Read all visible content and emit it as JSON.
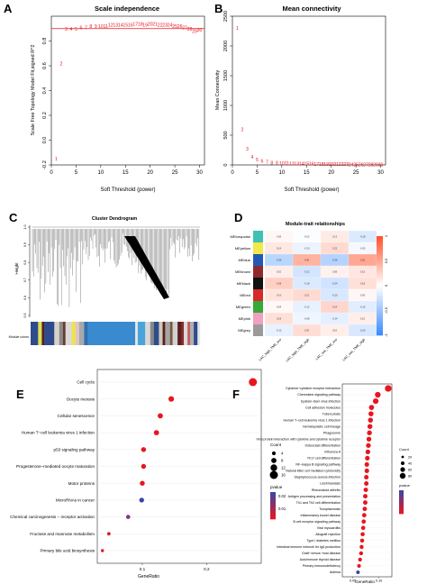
{
  "panels": {
    "A": {
      "letter": "A",
      "chart_data": {
        "type": "scatter",
        "title": "Scale independence",
        "xlabel": "Soft Threshold (power)",
        "ylabel": "Scale Free Topology Model Fit,signed R^2",
        "xlim": [
          0,
          31
        ],
        "ylim": [
          -0.2,
          1.0
        ],
        "xticks": [
          0,
          5,
          10,
          15,
          20,
          25,
          30
        ],
        "yticks": [
          "-0.2",
          "0.0",
          "0.2",
          "0.4",
          "0.6",
          "0.8"
        ],
        "yticks_v": [
          -0.2,
          0.0,
          0.2,
          0.4,
          0.6,
          0.8
        ],
        "hline": 0.9,
        "x": [
          1,
          2,
          3,
          4,
          5,
          6,
          7,
          8,
          9,
          10,
          11,
          12,
          13,
          14,
          15,
          16,
          17,
          18,
          19,
          20,
          21,
          22,
          23,
          24,
          25,
          26,
          27,
          28,
          29,
          30
        ],
        "y": [
          -0.15,
          0.62,
          0.9,
          0.9,
          0.9,
          0.91,
          0.91,
          0.92,
          0.92,
          0.92,
          0.92,
          0.93,
          0.93,
          0.93,
          0.93,
          0.93,
          0.94,
          0.94,
          0.93,
          0.94,
          0.94,
          0.93,
          0.93,
          0.93,
          0.92,
          0.92,
          0.91,
          0.9,
          0.88,
          0.89
        ],
        "labels": [
          "1",
          "2",
          "3",
          "4",
          "5",
          "6",
          "7",
          "8",
          "9",
          "10",
          "11",
          "12",
          "13",
          "14",
          "15",
          "16",
          "17",
          "18",
          "19",
          "20",
          "21",
          "22",
          "23",
          "24",
          "25",
          "26",
          "27",
          "28",
          "29",
          "30"
        ]
      }
    },
    "B": {
      "letter": "B",
      "chart_data": {
        "type": "scatter",
        "title": "Mean connectivity",
        "xlabel": "Soft Threshold (power)",
        "ylabel": "Mean Connectivity",
        "xlim": [
          0,
          31
        ],
        "ylim": [
          0,
          2500
        ],
        "xticks": [
          0,
          5,
          10,
          15,
          20,
          25,
          30
        ],
        "yticks": [
          "0",
          "500",
          "1000",
          "1500",
          "2000",
          "2500"
        ],
        "yticks_v": [
          0,
          500,
          1000,
          1500,
          2000,
          2500
        ],
        "x": [
          1,
          2,
          3,
          4,
          5,
          6,
          7,
          8,
          9,
          10,
          11,
          12,
          13,
          14,
          15,
          16,
          17,
          18,
          19,
          20,
          21,
          22,
          23,
          24,
          25,
          26,
          27,
          28,
          29,
          30
        ],
        "y": [
          2300,
          600,
          270,
          140,
          90,
          65,
          50,
          40,
          35,
          30,
          27,
          25,
          23,
          21,
          20,
          19,
          18,
          17,
          16,
          15,
          14,
          13,
          12,
          11,
          10,
          9,
          8,
          7,
          6,
          5
        ],
        "labels": [
          "1",
          "2",
          "3",
          "4",
          "5",
          "6",
          "7",
          "8",
          "9",
          "10",
          "11",
          "12",
          "13",
          "14",
          "15",
          "16",
          "17",
          "18",
          "19",
          "20",
          "21",
          "22",
          "23",
          "24",
          "25",
          "26",
          "27",
          "28",
          "29",
          "30"
        ]
      }
    },
    "C": {
      "letter": "C",
      "title": "Cluster Dendrogram",
      "ylabel": "Height",
      "yticks": [
        "0.5",
        "0.6",
        "0.7",
        "0.8",
        "0.9",
        "1.0"
      ],
      "colorbar_label": "Module colors",
      "segments": [
        {
          "c": "#2e4c8c",
          "w": 6
        },
        {
          "c": "#dbe15a",
          "w": 3
        },
        {
          "c": "#5a1f1f",
          "w": 2
        },
        {
          "c": "#2e4c8c",
          "w": 8
        },
        {
          "c": "#d7d3c8",
          "w": 4
        },
        {
          "c": "#8a8a8a",
          "w": 3
        },
        {
          "c": "#6a3b2a",
          "w": 2
        },
        {
          "c": "#d9d9d9",
          "w": 5
        },
        {
          "c": "#f0e44a",
          "w": 3
        },
        {
          "c": "#e0c5c5",
          "w": 3
        },
        {
          "c": "#a8a8a8",
          "w": 4
        },
        {
          "c": "#2f6fb3",
          "w": 3
        },
        {
          "c": "#3a8ad0",
          "w": 38
        },
        {
          "c": "#e8e8e8",
          "w": 2
        },
        {
          "c": "#4aa3d9",
          "w": 6
        },
        {
          "c": "#d9d9d9",
          "w": 4
        },
        {
          "c": "#8a8a8a",
          "w": 3
        },
        {
          "c": "#2e4c8c",
          "w": 4
        },
        {
          "c": "#cfc9b8",
          "w": 3
        },
        {
          "c": "#5a1f1f",
          "w": 2
        },
        {
          "c": "#a5a5a5",
          "w": 4
        },
        {
          "c": "#7a5a3a",
          "w": 2
        },
        {
          "c": "#d2d2d2",
          "w": 4
        },
        {
          "c": "#5a1f1f",
          "w": 3
        },
        {
          "c": "#8e2b2b",
          "w": 2
        },
        {
          "c": "#d9d9d9",
          "w": 3
        },
        {
          "c": "#c75a5a",
          "w": 2
        },
        {
          "c": "#b0b0b0",
          "w": 3
        },
        {
          "c": "#2e4c8c",
          "w": 3
        },
        {
          "c": "#e6e6e6",
          "w": 2
        }
      ]
    },
    "D": {
      "letter": "D",
      "chart_data": {
        "type": "heatmap",
        "title": "Module-trait relationships",
        "rows": [
          "MEturquoise",
          "MEyellow",
          "MEblue",
          "MEbrown",
          "MEblack",
          "MEred",
          "MEgreen",
          "MEpink",
          "MEgrey"
        ],
        "row_colors": [
          "#3fc1b5",
          "#f2e84a",
          "#2458b8",
          "#8e2a2a",
          "#111111",
          "#d72a2a",
          "#38a838",
          "#f2a0c0",
          "#9a9a9a"
        ],
        "cols": [
          "LAC_high_TME_low",
          "LAC_high_TME_high",
          "LAC_low_TME_low",
          "LAC_low_TME_high"
        ],
        "values": [
          [
            0.05,
            -0.02,
            0.12,
            -0.18
          ],
          [
            0.14,
            -0.1,
            0.22,
            -0.05
          ],
          [
            -0.36,
            0.45,
            -0.38,
            0.52
          ],
          [
            0.1,
            -0.22,
            0.08,
            0.15
          ],
          [
            0.28,
            -0.18,
            -0.24,
            0.18
          ],
          [
            0.16,
            0.22,
            -0.2,
            0.05
          ],
          [
            0.04,
            -0.12,
            0.24,
            -0.15
          ],
          [
            0.18,
            -0.08,
            -0.14,
            0.1
          ],
          [
            -0.12,
            0.2,
            0.1,
            -0.2
          ]
        ],
        "legend_ticks": [
          "1",
          "0.5",
          "0",
          "-0.5",
          "-1"
        ],
        "legend_values": [
          1,
          0.5,
          0,
          -0.5,
          -1
        ]
      }
    },
    "E": {
      "letter": "E",
      "chart_data": {
        "type": "scatter",
        "xlabel": "GeneRatio",
        "xlim": [
          0.03,
          0.285
        ],
        "xticks": [
          0.1,
          0.2
        ],
        "xtick_labels": [
          "0.1",
          "0.2"
        ],
        "terms": [
          "Cell cycle",
          "Oocyte meiosis",
          "Cellular senescence",
          "Human T−cell leukemia virus 1 infection",
          "p53 signaling pathway",
          "Progesterone−mediated oocyte maturation",
          "Motor proteins",
          "MicroRNAs in cancer",
          "Chemical carcinogenesis − receptor activation",
          "Fructose and mannose metabolism",
          "Primary bile acid biosynthesis"
        ],
        "gene_ratio": [
          0.272,
          0.145,
          0.128,
          0.122,
          0.102,
          0.102,
          0.1,
          0.099,
          0.078,
          0.048,
          0.038
        ],
        "count": [
          16,
          9,
          8,
          8,
          7,
          7,
          7,
          7,
          5,
          3,
          2
        ],
        "pvalue": [
          0.0001,
          0.0002,
          0.0003,
          0.0003,
          0.0005,
          0.0005,
          0.0006,
          0.021,
          0.016,
          0.0004,
          0.0006
        ],
        "colors": [
          "#e8161f",
          "#e8161f",
          "#e6161f",
          "#e6161f",
          "#e5161f",
          "#e5161f",
          "#e4161f",
          "#3a45a8",
          "#8b2f85",
          "#e4161f",
          "#e3161f"
        ],
        "legend": {
          "count_title": "Count",
          "count_labels": [
            "4",
            "8",
            "12",
            "16"
          ],
          "pvalue_title": "pvalue",
          "pvalue_labels": [
            "0.02",
            "0.01"
          ]
        }
      }
    },
    "F": {
      "letter": "F",
      "chart_data": {
        "type": "scatter",
        "xlabel": "GeneRatio",
        "xlim": [
          0.03,
          0.125
        ],
        "xticks": [
          0.05,
          0.1
        ],
        "xtick_labels": [
          "0.05",
          "0.10"
        ],
        "terms": [
          "Cytokine−cytokine receptor interaction",
          "Chemokine signaling pathway",
          "Epstein−Barr virus infection",
          "Cell adhesion molecules",
          "Tuberculosis",
          "Human T−cell leukemia virus 1 infection",
          "Hematopoietic cell lineage",
          "Phagosome",
          "Viral protein interaction with cytokine and cytokine receptor",
          "Osteoclast differentiation",
          "Influenza A",
          "Th17 cell differentiation",
          "NF−kappa B signaling pathway",
          "Natural killer cell mediated cytotoxicity",
          "Staphylococcus aureus infection",
          "Leishmaniasis",
          "Rheumatoid arthritis",
          "Antigen processing and presentation",
          "Th1 and Th2 cell differentiation",
          "Toxoplasmosis",
          "Inflammatory bowel disease",
          "B cell receptor signaling pathway",
          "Viral myocarditis",
          "Allograft rejection",
          "Type I diabetes mellitus",
          "Intestinal immune network for IgA production",
          "Graft−versus−host disease",
          "Autoimmune thyroid disease",
          "Primary immunodeficiency",
          "Asthma"
        ],
        "gene_ratio": [
          0.118,
          0.098,
          0.094,
          0.086,
          0.085,
          0.084,
          0.083,
          0.082,
          0.081,
          0.08,
          0.079,
          0.078,
          0.077,
          0.077,
          0.076,
          0.076,
          0.075,
          0.074,
          0.074,
          0.073,
          0.072,
          0.071,
          0.07,
          0.069,
          0.068,
          0.067,
          0.066,
          0.064,
          0.062,
          0.06
        ],
        "count": [
          95,
          80,
          78,
          70,
          69,
          68,
          67,
          66,
          65,
          64,
          63,
          62,
          61,
          61,
          60,
          60,
          59,
          58,
          58,
          57,
          56,
          55,
          54,
          53,
          52,
          51,
          50,
          48,
          46,
          44
        ],
        "colors": [
          "#e8161f",
          "#e8161f",
          "#e8161f",
          "#e8161f",
          "#e8161f",
          "#e8161f",
          "#e8161f",
          "#e8161f",
          "#e8161f",
          "#e8161f",
          "#e8161f",
          "#e8161f",
          "#e8161f",
          "#e8161f",
          "#e8161f",
          "#e8161f",
          "#e8161f",
          "#e8161f",
          "#e8161f",
          "#e8161f",
          "#e8161f",
          "#e8161f",
          "#e8161f",
          "#e8161f",
          "#e8161f",
          "#e8161f",
          "#e8161f",
          "#e8161f",
          "#e8161f",
          "#3a45a8"
        ],
        "legend": {
          "count_title": "Count",
          "count_labels": [
            "20",
            "40",
            "60",
            "80"
          ],
          "pvalue_title": "pvalue"
        }
      }
    }
  }
}
